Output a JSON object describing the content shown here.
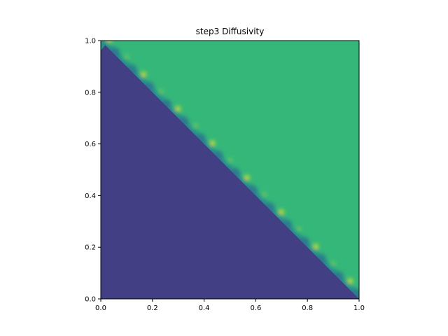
{
  "chart_data": {
    "type": "heatmap",
    "title": "step3 Diffusivity",
    "xlabel": "",
    "ylabel": "",
    "xlim": [
      0.0,
      1.0
    ],
    "ylim": [
      0.0,
      1.0
    ],
    "x_ticks": [
      "0.0",
      "0.2",
      "0.4",
      "0.6",
      "0.8",
      "1.0"
    ],
    "y_ticks": [
      "0.0",
      "0.2",
      "0.4",
      "0.6",
      "0.8",
      "1.0"
    ],
    "x_tick_values": [
      0.0,
      0.2,
      0.4,
      0.6,
      0.8,
      1.0
    ],
    "y_tick_values": [
      0.0,
      0.2,
      0.4,
      0.6,
      0.8,
      1.0
    ],
    "grid": false,
    "colormap": "viridis",
    "boundary": "diagonal interface from (0, 1) to (1, 0)",
    "regions": [
      {
        "name": "low",
        "location": "below diagonal (x + y < 1)",
        "color": "#433f84"
      },
      {
        "name": "high",
        "location": "above diagonal (x + y > 1)",
        "color": "#35b779"
      }
    ],
    "transition_colors": [
      "#3b1d5e",
      "#2b7c8e",
      "#21918c",
      "#5ec962",
      "#bddf26"
    ]
  }
}
